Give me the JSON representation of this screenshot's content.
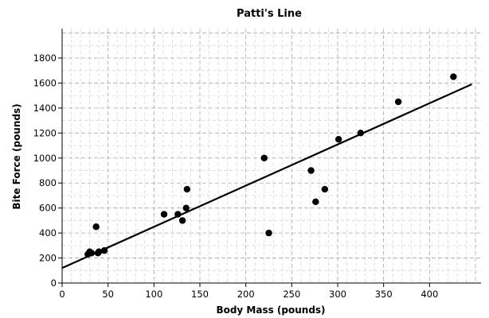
{
  "chart_data": {
    "type": "scatter",
    "title": "Patti's Line",
    "xlabel": "Body Mass (pounds)",
    "ylabel": "Bite Force (pounds)",
    "xlim": [
      0,
      450
    ],
    "ylim": [
      0,
      2000
    ],
    "x_ticks": [
      0,
      50,
      100,
      150,
      200,
      250,
      300,
      350,
      400
    ],
    "y_ticks": [
      0,
      200,
      400,
      600,
      800,
      1000,
      1200,
      1400,
      1600,
      1800
    ],
    "x_minor_step": 10,
    "y_minor_step": 100,
    "grid": true,
    "points": [
      {
        "x": 28,
        "y": 230
      },
      {
        "x": 30,
        "y": 250
      },
      {
        "x": 32,
        "y": 240
      },
      {
        "x": 37,
        "y": 450
      },
      {
        "x": 39,
        "y": 240
      },
      {
        "x": 40,
        "y": 250
      },
      {
        "x": 46,
        "y": 260
      },
      {
        "x": 111,
        "y": 550
      },
      {
        "x": 126,
        "y": 550
      },
      {
        "x": 131,
        "y": 500
      },
      {
        "x": 135,
        "y": 600
      },
      {
        "x": 136,
        "y": 750
      },
      {
        "x": 220,
        "y": 1000
      },
      {
        "x": 225,
        "y": 400
      },
      {
        "x": 271,
        "y": 900
      },
      {
        "x": 276,
        "y": 650
      },
      {
        "x": 286,
        "y": 750
      },
      {
        "x": 301,
        "y": 1150
      },
      {
        "x": 325,
        "y": 1200
      },
      {
        "x": 366,
        "y": 1450
      },
      {
        "x": 426,
        "y": 1650
      }
    ],
    "fit_line": {
      "x": [
        0,
        446
      ],
      "y": [
        120,
        1590
      ]
    }
  }
}
